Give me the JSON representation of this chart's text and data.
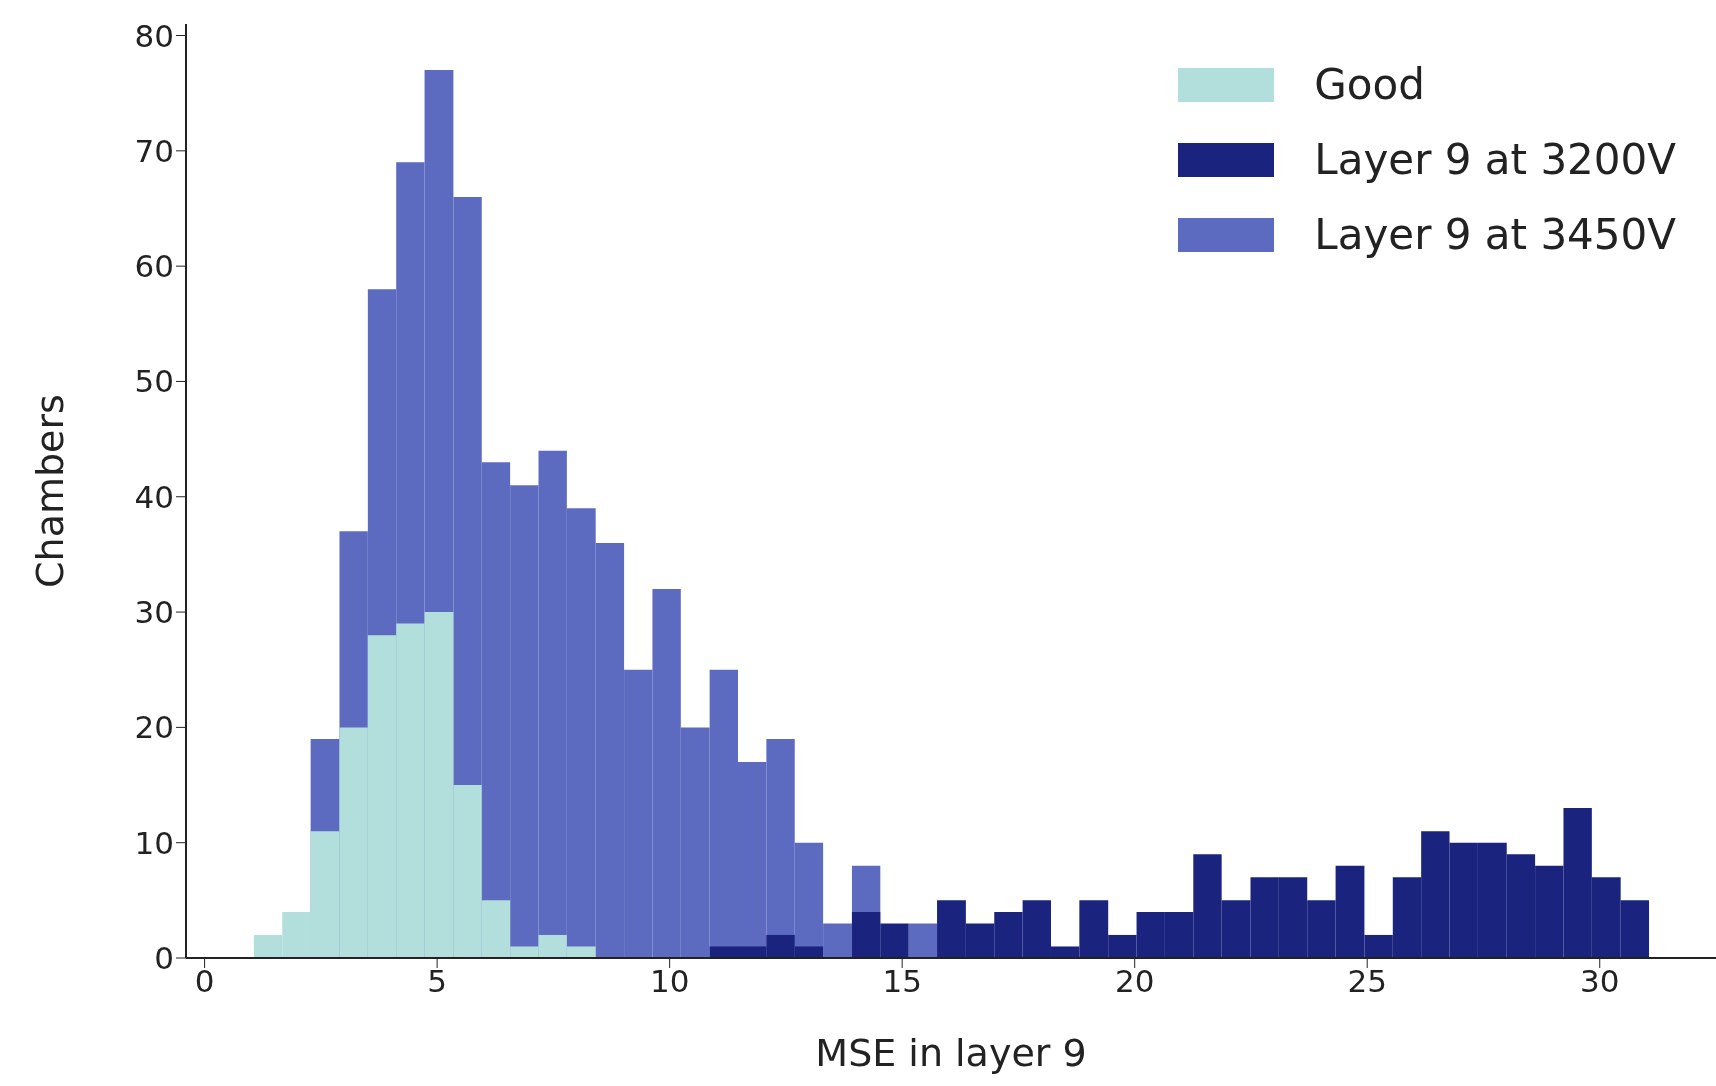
{
  "chart_data": {
    "type": "histogram",
    "xlabel": "MSE in layer 9",
    "ylabel": "Chambers",
    "bins": [
      1.06,
      1.67,
      2.28,
      2.9,
      3.51,
      4.12,
      4.73,
      5.35,
      5.96,
      6.57,
      7.18,
      7.79,
      8.41,
      9.02,
      9.63,
      10.24,
      10.86,
      11.47,
      12.08,
      12.69,
      13.3,
      13.92,
      14.53,
      15.14,
      15.75,
      16.37,
      16.98,
      17.59,
      18.2,
      18.81,
      19.43,
      20.04,
      20.65,
      21.26,
      21.87,
      22.49,
      23.1,
      23.71,
      24.32,
      24.94,
      25.55,
      26.16,
      26.77,
      27.38,
      28.0,
      28.61,
      29.22,
      29.83,
      30.45,
      31.06
    ],
    "series": [
      {
        "name": "Good",
        "color": "#b2dfdb",
        "values": [
          2,
          4,
          11,
          20,
          28,
          29,
          30,
          15,
          5,
          1,
          2,
          1,
          0,
          0,
          0,
          0,
          0,
          0,
          0,
          0,
          0,
          0,
          0,
          0,
          0,
          0,
          0,
          0,
          0,
          0,
          0,
          0,
          0,
          0,
          0,
          0,
          0,
          0,
          0,
          0,
          0,
          0,
          0,
          0,
          0,
          0,
          0,
          0,
          0
        ]
      },
      {
        "name": "Layer 9 at 3200V",
        "color": "#1a237e",
        "values": [
          0,
          0,
          0,
          0,
          0,
          0,
          0,
          0,
          0,
          0,
          0,
          0,
          0,
          0,
          0,
          0,
          1,
          1,
          2,
          1,
          0,
          4,
          3,
          0,
          5,
          3,
          4,
          5,
          1,
          5,
          2,
          4,
          4,
          9,
          5,
          7,
          7,
          5,
          8,
          2,
          7,
          11,
          10,
          10,
          9,
          8,
          13,
          7,
          5
        ]
      },
      {
        "name": "Layer 9 at 3450V",
        "color": "#5c6bc0",
        "values": [
          null,
          null,
          19,
          37,
          58,
          69,
          77,
          66,
          43,
          41,
          44,
          39,
          36,
          25,
          32,
          20,
          25,
          17,
          19,
          10,
          3,
          8,
          null,
          3,
          0,
          0,
          0,
          0,
          0,
          0,
          0,
          0,
          0,
          0,
          0,
          0,
          0,
          0,
          0,
          0,
          0,
          0,
          0,
          0,
          0,
          0,
          0,
          0,
          0
        ]
      }
    ],
    "xlim": [
      -0.4,
      32.5
    ],
    "ylim": [
      0,
      81
    ],
    "xticks": [
      0,
      5,
      10,
      15,
      20,
      25,
      30
    ],
    "yticks": [
      0,
      10,
      20,
      30,
      40,
      50,
      60,
      70,
      80
    ],
    "grid": false,
    "legend": "top right"
  }
}
